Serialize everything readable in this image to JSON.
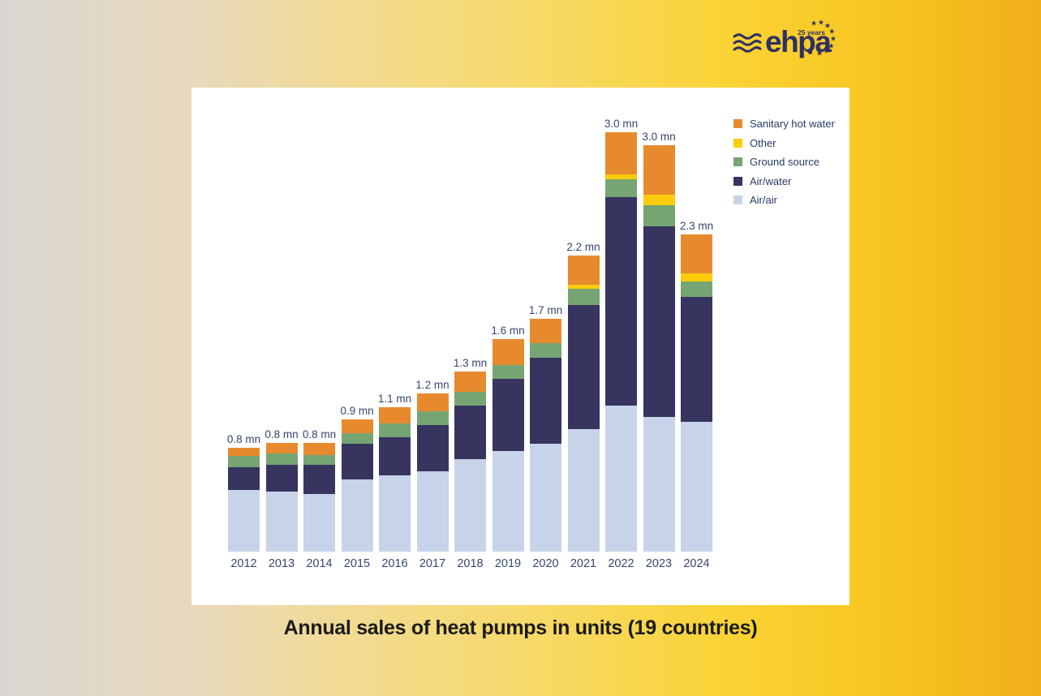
{
  "logo": {
    "wordmark": "ehpa",
    "anniversary": "25 years",
    "color": "#2D3160"
  },
  "caption": "Annual sales of heat pumps in units (19 countries)",
  "chart_data": {
    "type": "bar",
    "stacked": true,
    "title": "Annual sales of heat pumps in units (19 countries)",
    "unit": "million units",
    "categories": [
      "2012",
      "2013",
      "2014",
      "2015",
      "2016",
      "2017",
      "2018",
      "2019",
      "2020",
      "2021",
      "2022",
      "2023",
      "2024"
    ],
    "series": [
      {
        "name": "Air/air",
        "color": "#C7D3E8",
        "values": [
          0.45,
          0.44,
          0.42,
          0.53,
          0.56,
          0.59,
          0.68,
          0.74,
          0.79,
          0.9,
          1.07,
          0.99,
          0.95
        ]
      },
      {
        "name": "Air/water",
        "color": "#373460",
        "values": [
          0.17,
          0.2,
          0.22,
          0.26,
          0.28,
          0.34,
          0.39,
          0.53,
          0.63,
          0.91,
          1.53,
          1.4,
          0.92
        ]
      },
      {
        "name": "Ground source",
        "color": "#76A573",
        "values": [
          0.08,
          0.08,
          0.07,
          0.08,
          0.1,
          0.1,
          0.1,
          0.1,
          0.11,
          0.12,
          0.13,
          0.15,
          0.11
        ]
      },
      {
        "name": "Other",
        "color": "#FBCC09",
        "values": [
          0.0,
          0.0,
          0.0,
          0.0,
          0.0,
          0.0,
          0.0,
          0.0,
          0.0,
          0.03,
          0.04,
          0.08,
          0.06
        ]
      },
      {
        "name": "Sanitary hot water",
        "color": "#E78A2E",
        "values": [
          0.06,
          0.08,
          0.09,
          0.1,
          0.12,
          0.13,
          0.15,
          0.19,
          0.18,
          0.21,
          0.31,
          0.36,
          0.29
        ]
      }
    ],
    "bar_total_labels": [
      "0.8 mn",
      "0.8 mn",
      "0.8 mn",
      "0.9 mn",
      "1.1 mn",
      "1.2 mn",
      "1.3 mn",
      "1.6 mn",
      "1.7 mn",
      "2.2 mn",
      "3.0 mn",
      "3.0 mn",
      "2.3 mn"
    ],
    "legend": {
      "position": "top-right",
      "order_top_to_bottom": [
        "Sanitary hot water",
        "Other",
        "Ground source",
        "Air/water",
        "Air/air"
      ]
    },
    "axes": {
      "x_ticks": [
        "2012",
        "2013",
        "2014",
        "2015",
        "2016",
        "2017",
        "2018",
        "2019",
        "2020",
        "2021",
        "2022",
        "2023",
        "2024"
      ],
      "y_axis_visible": false,
      "gridlines": false
    },
    "label_color": "#36466F"
  }
}
